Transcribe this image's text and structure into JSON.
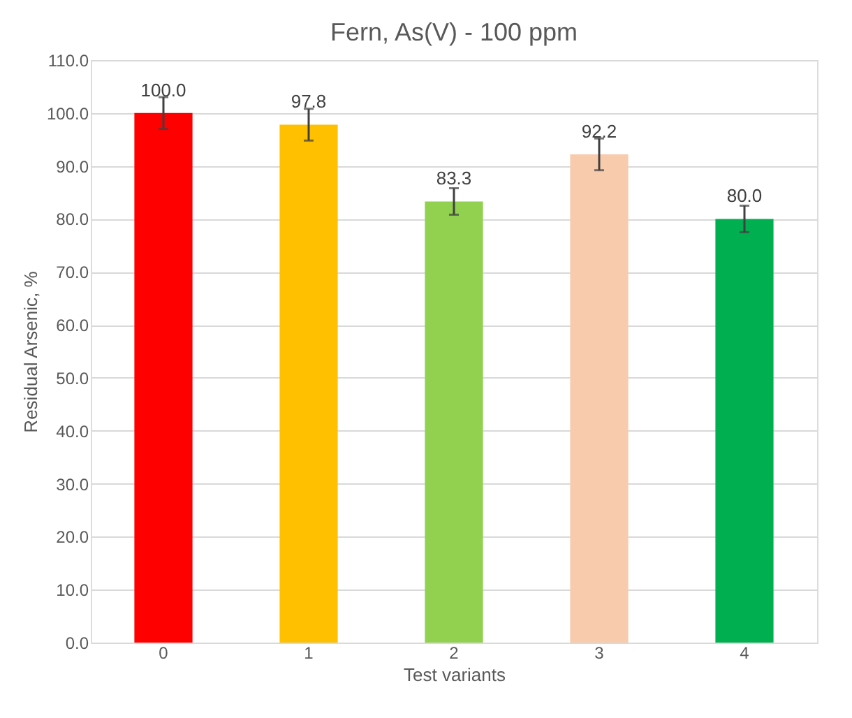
{
  "chart_data": {
    "type": "bar",
    "title": "Fern, As(V) - 100 ppm",
    "xlabel": "Test variants",
    "ylabel": "Residual Arsenic, %",
    "categories": [
      "0",
      "1",
      "2",
      "3",
      "4"
    ],
    "values": [
      100.0,
      97.8,
      83.3,
      92.2,
      80.0
    ],
    "colors": [
      "#ff0000",
      "#ffc000",
      "#92d050",
      "#f8cbad",
      "#00b050"
    ],
    "errors": [
      3,
      3,
      2.5,
      3,
      2.5
    ],
    "ylim": [
      0,
      110
    ],
    "yticks": [
      {
        "value": 0,
        "label": "0.0"
      },
      {
        "value": 10,
        "label": "10.0"
      },
      {
        "value": 20,
        "label": "20.0"
      },
      {
        "value": 30,
        "label": "30.0"
      },
      {
        "value": 40,
        "label": "40.0"
      },
      {
        "value": 50,
        "label": "50.0"
      },
      {
        "value": 60,
        "label": "60.0"
      },
      {
        "value": 70,
        "label": "70.0"
      },
      {
        "value": 80,
        "label": "80.0"
      },
      {
        "value": 90,
        "label": "90.0"
      },
      {
        "value": 100,
        "label": "100.0"
      },
      {
        "value": 110,
        "label": "110.0"
      }
    ],
    "grid": "y",
    "value_labels": [
      "100.0",
      "97.8",
      "83.3",
      "92.2",
      "80.0"
    ]
  }
}
